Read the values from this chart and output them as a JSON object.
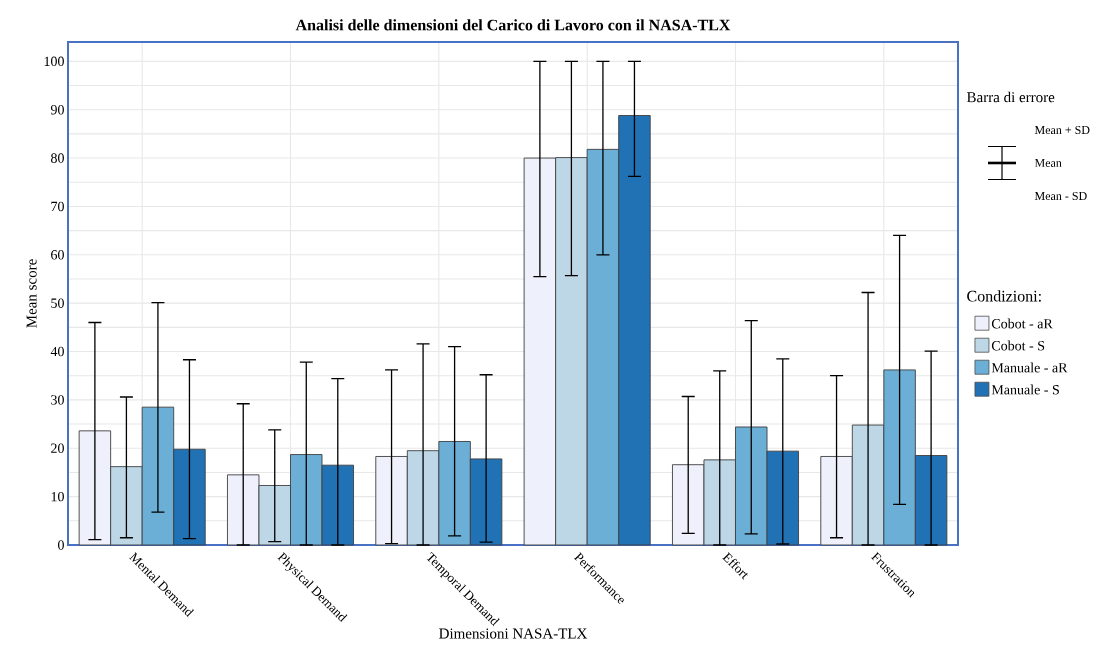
{
  "chart_data": {
    "type": "bar",
    "title": "Analisi delle dimensioni del Carico di Lavoro con il NASA-TLX",
    "xlabel": "Dimensioni NASA-TLX",
    "ylabel": "Mean score",
    "legend_title": "Condizioni:",
    "categories": [
      "Mental Demand",
      "Physical Demand",
      "Temporal Demand",
      "Performance",
      "Effort",
      "Frustration"
    ],
    "series": [
      {
        "name": "Cobot - aR",
        "color": "#eef0fb",
        "values": [
          23.6,
          14.5,
          18.3,
          80,
          16.6,
          18.3
        ],
        "errors": [
          [
            1.1,
            46
          ],
          [
            0,
            29.2
          ],
          [
            0.3,
            36.2
          ],
          [
            55.5,
            100
          ],
          [
            2.4,
            30.7
          ],
          [
            1.5,
            35
          ]
        ]
      },
      {
        "name": "Cobot - S",
        "color": "#bdd7e7",
        "values": [
          16.2,
          12.3,
          19.5,
          80.1,
          17.6,
          24.8
        ],
        "errors": [
          [
            1.5,
            30.6
          ],
          [
            0.7,
            23.8
          ],
          [
            0,
            41.6
          ],
          [
            55.7,
            100
          ],
          [
            0,
            36
          ],
          [
            0,
            52.2
          ]
        ]
      },
      {
        "name": "Manuale - aR",
        "color": "#6baed6",
        "values": [
          28.5,
          18.7,
          21.4,
          81.8,
          24.4,
          36.2
        ],
        "errors": [
          [
            6.8,
            50.1
          ],
          [
            0,
            37.8
          ],
          [
            1.9,
            41
          ],
          [
            60,
            100
          ],
          [
            2.3,
            46.4
          ],
          [
            8.4,
            64
          ]
        ]
      },
      {
        "name": "Manuale - S",
        "color": "#2171b5",
        "values": [
          19.8,
          16.5,
          17.8,
          88.8,
          19.4,
          18.5
        ],
        "errors": [
          [
            1.3,
            38.3
          ],
          [
            0,
            34.4
          ],
          [
            0.6,
            35.2
          ],
          [
            76.2,
            100
          ],
          [
            0.2,
            38.5
          ],
          [
            0,
            40.1
          ]
        ]
      }
    ],
    "ylim": [
      0,
      104
    ],
    "yticks": [
      0,
      {
        "value": 5,
        "label": null
      },
      10,
      {
        "value": 15,
        "label": null
      },
      20,
      {
        "value": 25,
        "label": null
      },
      30,
      {
        "value": 35,
        "label": null
      },
      40,
      {
        "value": 45,
        "label": null
      },
      50,
      {
        "value": 55,
        "label": null
      },
      60,
      {
        "value": 65,
        "label": null
      },
      70,
      {
        "value": 75,
        "label": null
      },
      80,
      {
        "value": 85,
        "label": null
      },
      90,
      {
        "value": 95,
        "label": null
      },
      100
    ],
    "grid": true,
    "legend": "right",
    "annotations": [
      "Barra di errore",
      "Mean + SD",
      "Mean",
      "Mean - SD"
    ]
  }
}
